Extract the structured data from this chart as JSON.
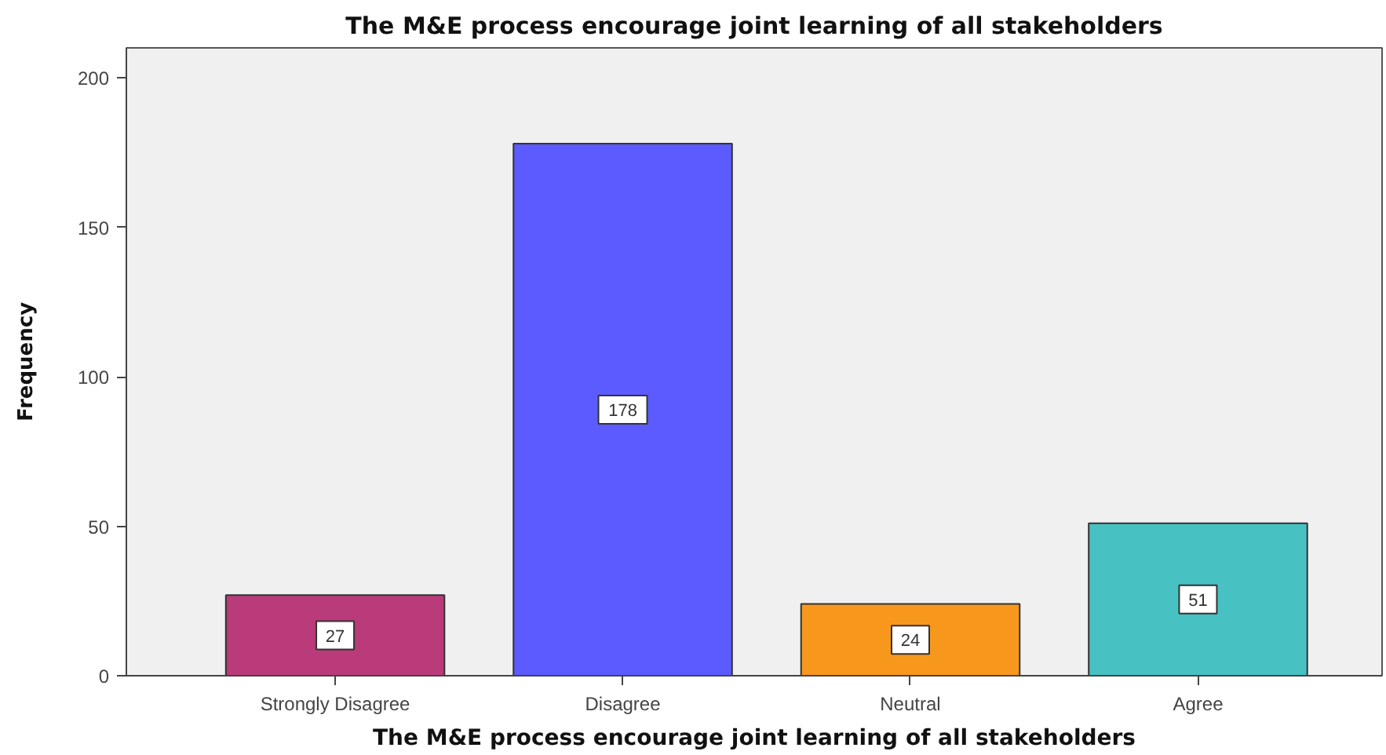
{
  "chart_data": {
    "type": "bar",
    "title": "The M&E process encourage joint learning of all stakeholders",
    "xlabel": "The M&E process encourage joint learning of all stakeholders",
    "ylabel": "Frequency",
    "categories": [
      "Strongly Disagree",
      "Disagree",
      "Neutral",
      "Agree"
    ],
    "values": [
      27,
      178,
      24,
      51
    ],
    "colors": [
      "#b93b7a",
      "#5b5bff",
      "#f7981d",
      "#47c1c2"
    ],
    "ylim": [
      0,
      210
    ],
    "yticks": [
      0,
      50,
      100,
      150,
      200
    ],
    "data_labels": true
  }
}
